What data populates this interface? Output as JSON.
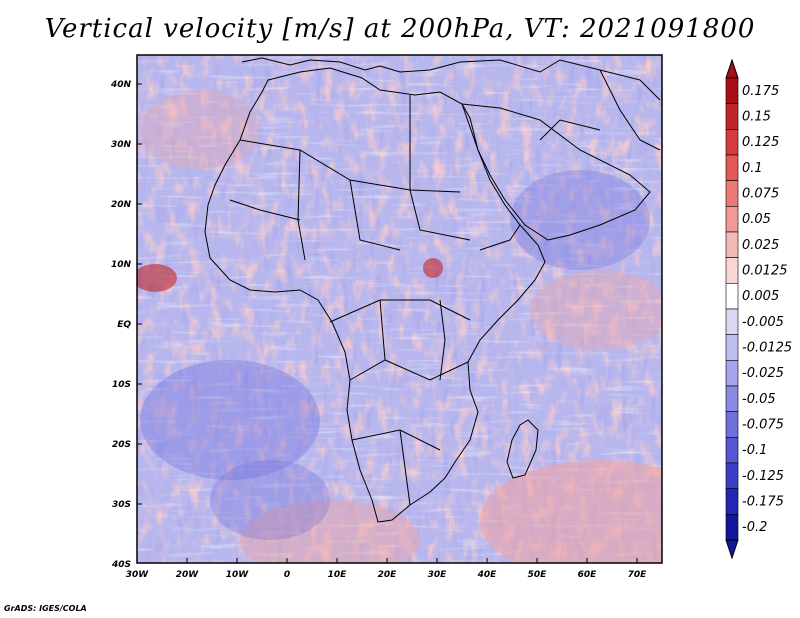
{
  "title": "Vertical velocity [m/s] at 200hPa, VT: 2021091800",
  "credit": "GrADS: IGES/COLA",
  "map": {
    "lat_labels": [
      "40N",
      "30N",
      "20N",
      "10N",
      "EQ",
      "10S",
      "20S",
      "30S",
      "40S"
    ],
    "lon_labels": [
      "30W",
      "20W",
      "10W",
      "0",
      "10E",
      "20E",
      "30E",
      "40E",
      "50E",
      "60E",
      "70E"
    ],
    "lat_range": [
      -40,
      45
    ],
    "lon_range": [
      -30,
      75
    ]
  },
  "colorbar": {
    "labels": [
      "0.175",
      "0.15",
      "0.125",
      "0.1",
      "0.075",
      "0.05",
      "0.025",
      "0.0125",
      "0.005",
      "-0.005",
      "-0.0125",
      "-0.025",
      "-0.05",
      "-0.075",
      "-0.1",
      "-0.125",
      "-0.175",
      "-0.2"
    ],
    "colors": [
      "#a50f15",
      "#c0252a",
      "#d63b3b",
      "#e35a55",
      "#ea7a74",
      "#f09995",
      "#f5b9b6",
      "#f9d6d4",
      "#ffffff",
      "#d8d8f5",
      "#bebef0",
      "#a4a4ea",
      "#8a8ae3",
      "#7070dc",
      "#5656d2",
      "#3d3dc6",
      "#2626b5",
      "#14149c"
    ]
  }
}
